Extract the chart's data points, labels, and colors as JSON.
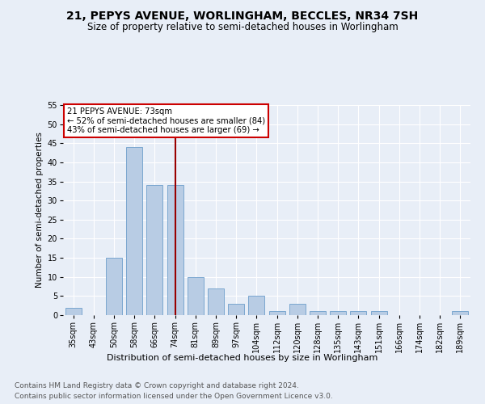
{
  "title": "21, PEPYS AVENUE, WORLINGHAM, BECCLES, NR34 7SH",
  "subtitle": "Size of property relative to semi-detached houses in Worlingham",
  "xlabel": "Distribution of semi-detached houses by size in Worlingham",
  "ylabel": "Number of semi-detached properties",
  "categories": [
    "35sqm",
    "43sqm",
    "50sqm",
    "58sqm",
    "66sqm",
    "74sqm",
    "81sqm",
    "89sqm",
    "97sqm",
    "104sqm",
    "112sqm",
    "120sqm",
    "128sqm",
    "135sqm",
    "143sqm",
    "151sqm",
    "166sqm",
    "174sqm",
    "182sqm",
    "189sqm"
  ],
  "values": [
    2,
    0,
    15,
    44,
    34,
    34,
    10,
    7,
    3,
    5,
    1,
    3,
    1,
    1,
    1,
    1,
    0,
    0,
    0,
    1
  ],
  "bar_color": "#b8cce4",
  "bar_edge_color": "#7ba7d0",
  "vline_x": 5,
  "annotation_title": "21 PEPYS AVENUE: 73sqm",
  "annotation_line1": "← 52% of semi-detached houses are smaller (84)",
  "annotation_line2": "43% of semi-detached houses are larger (69) →",
  "annotation_box_color": "#ffffff",
  "annotation_box_edge_color": "#cc0000",
  "vline_color": "#990000",
  "ylim": [
    0,
    55
  ],
  "yticks": [
    0,
    5,
    10,
    15,
    20,
    25,
    30,
    35,
    40,
    45,
    50,
    55
  ],
  "footer_line1": "Contains HM Land Registry data © Crown copyright and database right 2024.",
  "footer_line2": "Contains public sector information licensed under the Open Government Licence v3.0.",
  "background_color": "#e8eef7",
  "plot_background_color": "#e8eef7",
  "title_fontsize": 10,
  "subtitle_fontsize": 8.5,
  "ylabel_fontsize": 7.5,
  "tick_fontsize": 7,
  "footer_fontsize": 6.5,
  "xlabel_fontsize": 8
}
